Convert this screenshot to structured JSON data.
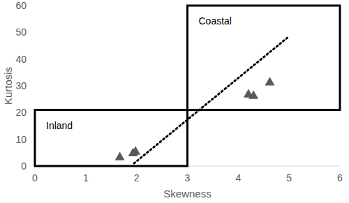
{
  "chart_data": {
    "type": "scatter",
    "x_label": "Skewness",
    "y_label": "Kurtosis",
    "x": [
      1.67,
      1.93,
      1.98,
      4.2,
      4.3,
      4.62
    ],
    "values": [
      3.5,
      5.0,
      5.6,
      27.0,
      26.5,
      31.5
    ],
    "color": "#595959",
    "marker": "triangle",
    "xlim": [
      0,
      6
    ],
    "xticks": [
      0,
      1,
      2,
      3,
      4,
      5,
      6
    ],
    "ylim": [
      0,
      60
    ],
    "yticks": [
      0,
      10,
      20,
      30,
      40,
      50,
      60
    ],
    "grid": false,
    "regions": [
      {
        "name": "Inland",
        "x": [
          0,
          3
        ],
        "y": [
          0,
          21
        ]
      },
      {
        "name": "Coastal",
        "x": [
          3,
          6
        ],
        "y": [
          21,
          60
        ]
      }
    ],
    "trend_line": {
      "x": [
        1.95,
        5
      ],
      "y": [
        1,
        48.5
      ],
      "line_style": "dotted"
    }
  }
}
